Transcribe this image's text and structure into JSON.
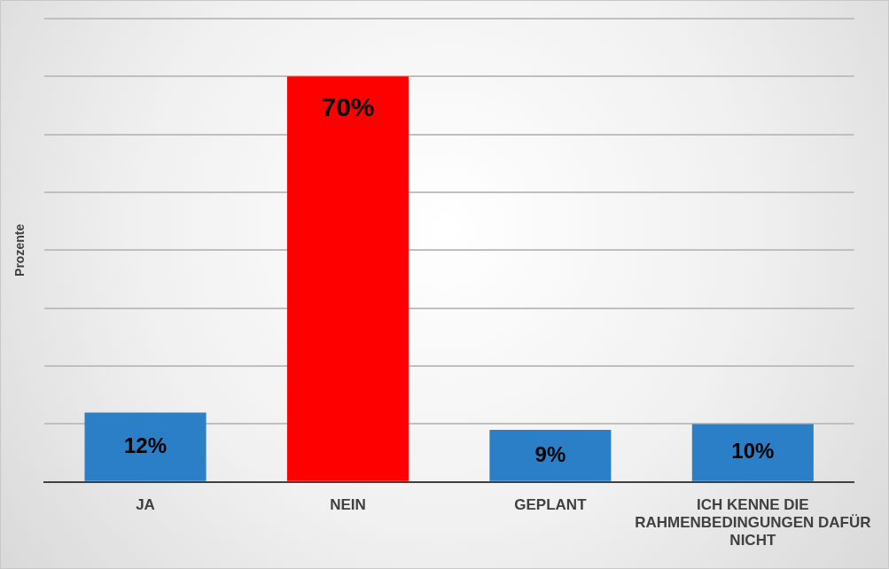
{
  "chart_data": {
    "type": "bar",
    "ylabel": "Prozente",
    "categories": [
      "JA",
      "NEIN",
      "GEPLANT",
      "ICH KENNE DIE RAHMENBEDINGUNGEN DAFÜR NICHT"
    ],
    "values": [
      12,
      70,
      9,
      10
    ],
    "colors": [
      "#2a7fc6",
      "#ff0000",
      "#2a7fc6",
      "#2a7fc6"
    ],
    "value_labels": [
      "12%",
      "70%",
      "9%",
      "10%"
    ],
    "ylim": [
      0,
      80
    ],
    "grid": "y",
    "tick_labels": "x",
    "legend": false
  }
}
